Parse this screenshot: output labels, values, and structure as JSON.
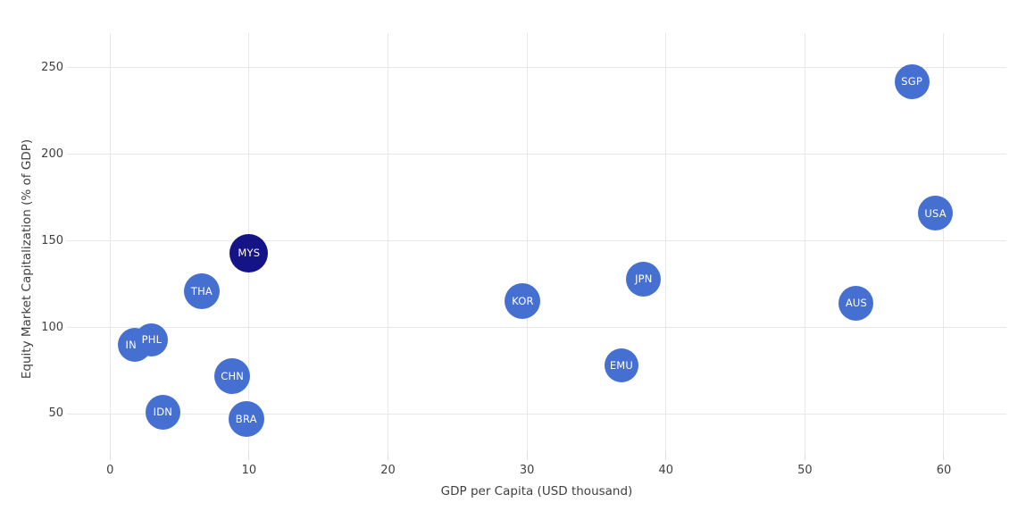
{
  "chart_data": {
    "type": "scatter",
    "title": "",
    "xlabel": "GDP per Capita (USD thousand)",
    "ylabel": "Equity Market Capitalization (% of GDP)",
    "xlim": [
      -3.1,
      64.5
    ],
    "ylim": [
      27,
      270
    ],
    "x_ticks": [
      0,
      10,
      20,
      30,
      40,
      50,
      60
    ],
    "y_ticks": [
      50,
      100,
      150,
      200,
      250
    ],
    "grid": true,
    "legend": "none",
    "default_color": "#4570d2",
    "highlight_color": "#141487",
    "bubble_label_color": "#ffffff",
    "points": [
      {
        "label": "IND",
        "x": 1.8,
        "y": 90,
        "r": 19,
        "highlight": false
      },
      {
        "label": "PHL",
        "x": 3.0,
        "y": 93,
        "r": 18.5,
        "highlight": false
      },
      {
        "label": "IDN",
        "x": 3.8,
        "y": 51,
        "r": 19.5,
        "highlight": false
      },
      {
        "label": "THA",
        "x": 6.6,
        "y": 121,
        "r": 20,
        "highlight": false
      },
      {
        "label": "CHN",
        "x": 8.8,
        "y": 72,
        "r": 20,
        "highlight": false
      },
      {
        "label": "BRA",
        "x": 9.8,
        "y": 47,
        "r": 20,
        "highlight": false
      },
      {
        "label": "MYS",
        "x": 10.0,
        "y": 143,
        "r": 21.5,
        "highlight": true
      },
      {
        "label": "KOR",
        "x": 29.7,
        "y": 115,
        "r": 20,
        "highlight": false
      },
      {
        "label": "EMU",
        "x": 36.8,
        "y": 78,
        "r": 19,
        "highlight": false
      },
      {
        "label": "JPN",
        "x": 38.4,
        "y": 128,
        "r": 19.5,
        "highlight": false
      },
      {
        "label": "AUS",
        "x": 53.7,
        "y": 114,
        "r": 19.5,
        "highlight": false
      },
      {
        "label": "SGP",
        "x": 57.7,
        "y": 242,
        "r": 19.5,
        "highlight": false
      },
      {
        "label": "USA",
        "x": 59.4,
        "y": 166,
        "r": 19.5,
        "highlight": false
      }
    ]
  }
}
